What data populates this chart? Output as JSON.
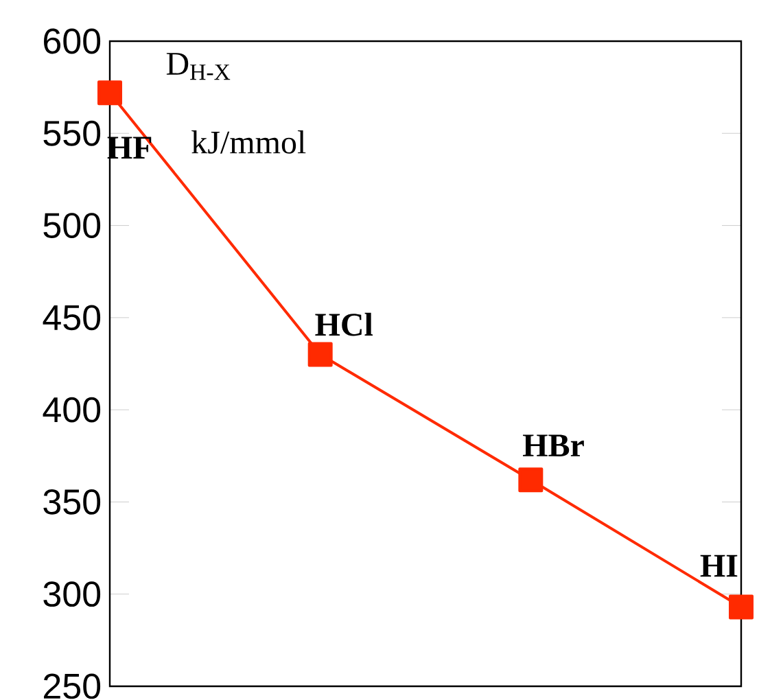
{
  "chart_data": {
    "type": "line",
    "categories": [
      "HF",
      "HCl",
      "HBr",
      "HI"
    ],
    "values": [
      572,
      430,
      362,
      293
    ],
    "color": "#ff2a00",
    "marker": "square",
    "line_style": "solid",
    "ylim": [
      250,
      600
    ],
    "yticks": [
      250,
      300,
      350,
      400,
      450,
      500,
      550,
      600
    ],
    "tick_labels": "y",
    "annotations": [
      "D$_{H-X}$",
      "kJ/mmol"
    ]
  }
}
